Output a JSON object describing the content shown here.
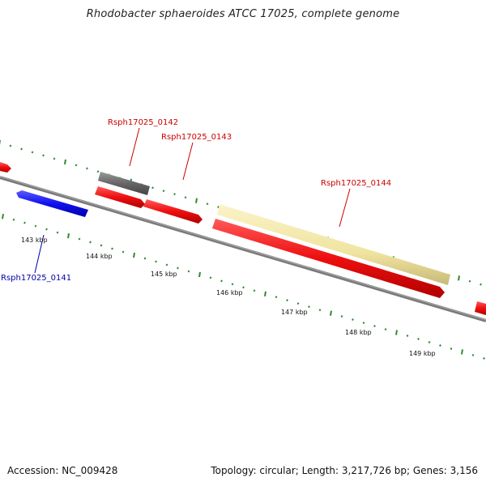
{
  "title": "Rhodobacter sphaeroides ATCC 17025, complete genome",
  "footer": {
    "accession": "Accession: NC_009428",
    "summary": "Topology: circular; Length: 3,217,726 bp; Genes: 3,156"
  },
  "colors": {
    "background": "#ffffff",
    "backbone": "#7a7a7a",
    "tick": "#2e8b2e",
    "forward_gene": "#ee1111",
    "reverse_gene": "#1111ee",
    "hypothetical": "#666666",
    "rna_or_other": "#f2e6a8",
    "label_forward": "#cc0000",
    "label_reverse": "#0000aa"
  },
  "scale_labels": [
    "143 kbp",
    "144 kbp",
    "145 kbp",
    "146 kbp",
    "147 kbp",
    "148 kbp",
    "149 kbp"
  ],
  "gene_labels": [
    {
      "id": "g0142",
      "text": "Rsph17025_0142",
      "strand": "forward"
    },
    {
      "id": "g0143",
      "text": "Rsph17025_0143",
      "strand": "forward"
    },
    {
      "id": "g0144",
      "text": "Rsph17025_0144",
      "strand": "forward"
    },
    {
      "id": "g0141",
      "text": "Rsph17025_0141",
      "strand": "reverse"
    }
  ]
}
